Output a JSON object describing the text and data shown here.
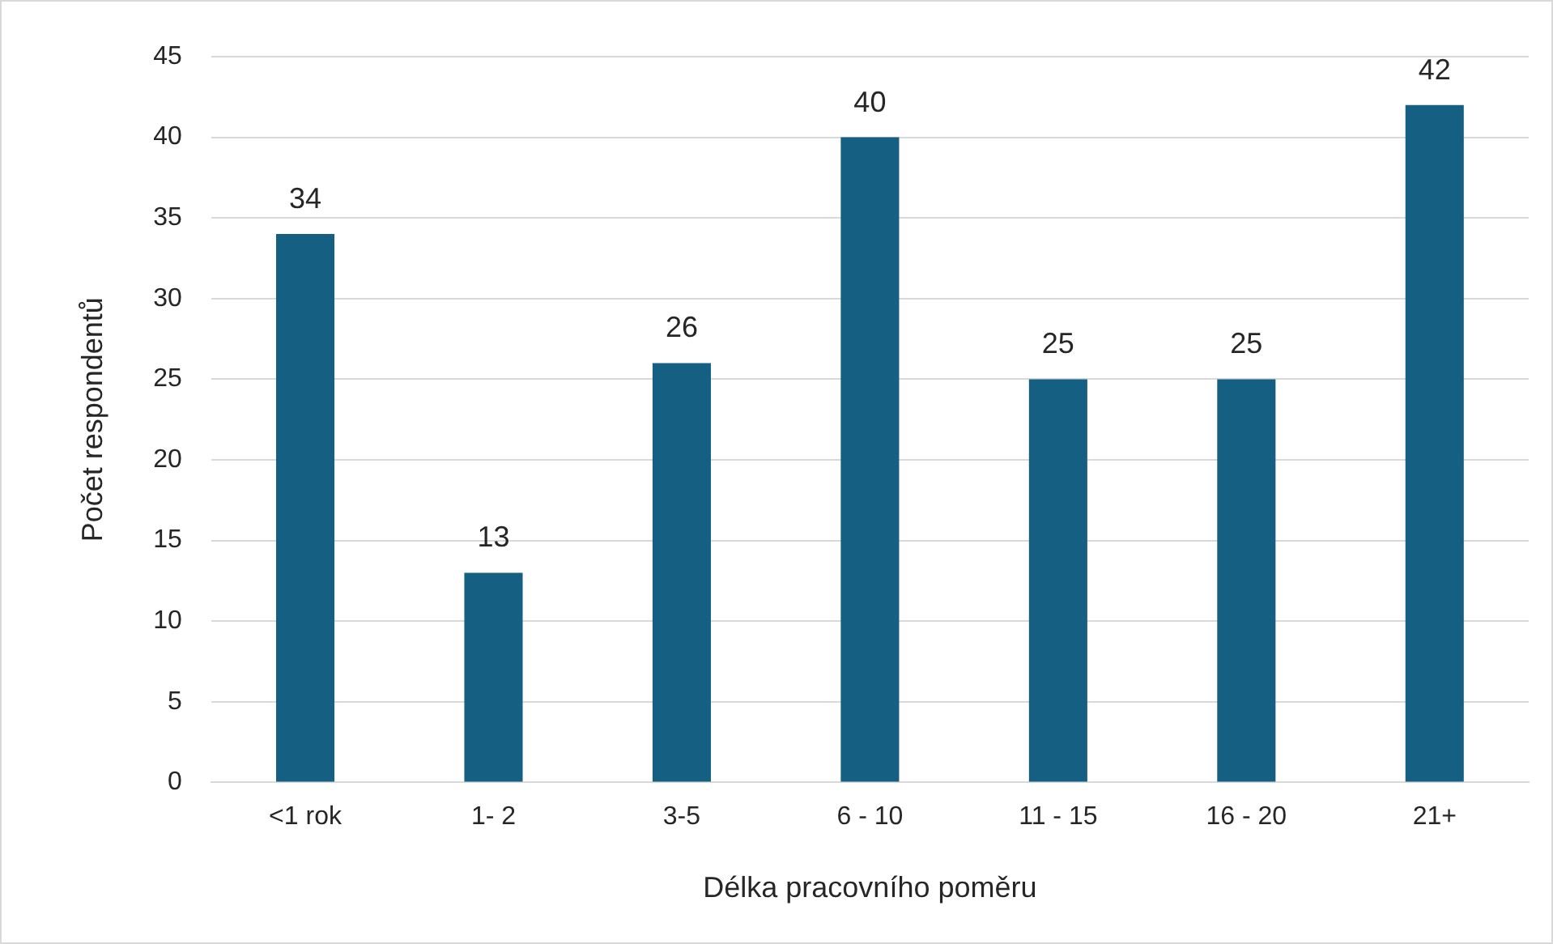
{
  "chart_data": {
    "type": "bar",
    "xlabel": "Délka pracovního poměru",
    "ylabel": "Počet respondentů",
    "categories": [
      "<1 rok",
      "1- 2",
      "3-5",
      "6 - 10",
      "11 - 15",
      "16 - 20",
      "21+"
    ],
    "values": [
      34,
      13,
      26,
      40,
      25,
      25,
      42
    ],
    "color": "#156082",
    "ylim": [
      0,
      45
    ],
    "yticks": [
      0,
      5,
      10,
      15,
      20,
      25,
      30,
      35,
      40,
      45
    ],
    "grid": "y",
    "legend": false,
    "data_labels": true
  }
}
